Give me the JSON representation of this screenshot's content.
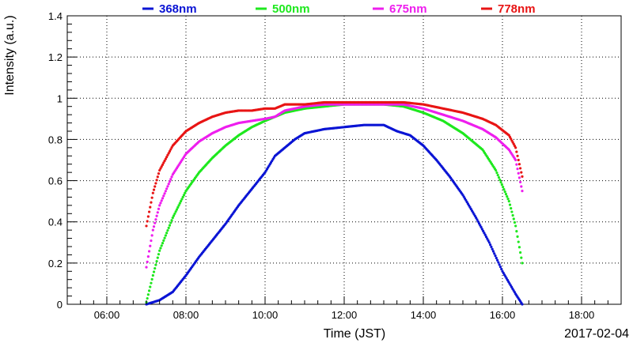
{
  "chart_data": {
    "type": "scatter",
    "title": "",
    "xlabel": "Time (JST)",
    "ylabel": "Intensity (a.u.)",
    "date_label": "2017-02-04",
    "xlim": [
      "05:00",
      "19:00"
    ],
    "ylim": [
      0,
      1.4
    ],
    "x_tick_labels": [
      "06:00",
      "08:00",
      "10:00",
      "12:00",
      "14:00",
      "16:00",
      "18:00"
    ],
    "y_tick_labels": [
      "0",
      "0.2",
      "0.4",
      "0.6",
      "0.8",
      "1",
      "1.2",
      "1.4"
    ],
    "grid": true,
    "legend_position": "top",
    "series": [
      {
        "name": "368nm",
        "color": "#0a14d4",
        "x": [
          "07:00",
          "07:20",
          "07:40",
          "08:00",
          "08:20",
          "08:40",
          "09:00",
          "09:20",
          "09:40",
          "10:00",
          "10:15",
          "10:30",
          "10:45",
          "11:00",
          "11:30",
          "12:00",
          "12:30",
          "13:00",
          "13:20",
          "13:40",
          "14:00",
          "14:20",
          "14:40",
          "15:00",
          "15:20",
          "15:40",
          "16:00",
          "16:20",
          "16:30"
        ],
        "y": [
          0.0,
          0.02,
          0.06,
          0.14,
          0.23,
          0.31,
          0.39,
          0.48,
          0.56,
          0.64,
          0.72,
          0.76,
          0.8,
          0.83,
          0.85,
          0.86,
          0.87,
          0.87,
          0.84,
          0.82,
          0.77,
          0.7,
          0.62,
          0.53,
          0.42,
          0.3,
          0.16,
          0.05,
          0.0
        ]
      },
      {
        "name": "500nm",
        "color": "#1ee81e",
        "x": [
          "07:00",
          "07:10",
          "07:20",
          "07:40",
          "08:00",
          "08:20",
          "08:40",
          "09:00",
          "09:20",
          "09:40",
          "10:00",
          "10:15",
          "10:30",
          "11:00",
          "11:30",
          "12:00",
          "12:30",
          "13:00",
          "13:30",
          "14:00",
          "14:30",
          "15:00",
          "15:30",
          "15:50",
          "16:10",
          "16:20",
          "16:30"
        ],
        "y": [
          0.01,
          0.14,
          0.26,
          0.42,
          0.55,
          0.64,
          0.71,
          0.77,
          0.82,
          0.86,
          0.89,
          0.91,
          0.93,
          0.95,
          0.96,
          0.97,
          0.97,
          0.97,
          0.96,
          0.93,
          0.89,
          0.83,
          0.75,
          0.65,
          0.5,
          0.38,
          0.2
        ]
      },
      {
        "name": "675nm",
        "color": "#ee1eee",
        "x": [
          "07:00",
          "07:10",
          "07:20",
          "07:40",
          "08:00",
          "08:20",
          "08:40",
          "09:00",
          "09:20",
          "09:40",
          "10:00",
          "10:15",
          "10:30",
          "11:00",
          "11:30",
          "12:00",
          "12:30",
          "13:00",
          "13:30",
          "14:00",
          "14:30",
          "15:00",
          "15:30",
          "15:50",
          "16:10",
          "16:20",
          "16:30"
        ],
        "y": [
          0.18,
          0.36,
          0.48,
          0.63,
          0.73,
          0.79,
          0.83,
          0.86,
          0.88,
          0.89,
          0.9,
          0.91,
          0.94,
          0.96,
          0.97,
          0.97,
          0.97,
          0.97,
          0.97,
          0.95,
          0.92,
          0.89,
          0.85,
          0.81,
          0.75,
          0.7,
          0.55
        ]
      },
      {
        "name": "778nm",
        "color": "#e81414",
        "x": [
          "07:00",
          "07:10",
          "07:20",
          "07:40",
          "08:00",
          "08:20",
          "08:40",
          "09:00",
          "09:20",
          "09:40",
          "10:00",
          "10:15",
          "10:30",
          "11:00",
          "11:30",
          "12:00",
          "12:30",
          "13:00",
          "13:30",
          "14:00",
          "14:30",
          "15:00",
          "15:30",
          "15:50",
          "16:10",
          "16:20",
          "16:30"
        ],
        "y": [
          0.38,
          0.54,
          0.65,
          0.77,
          0.84,
          0.88,
          0.91,
          0.93,
          0.94,
          0.94,
          0.95,
          0.95,
          0.97,
          0.97,
          0.98,
          0.98,
          0.98,
          0.98,
          0.98,
          0.97,
          0.95,
          0.93,
          0.9,
          0.87,
          0.82,
          0.76,
          0.62
        ]
      }
    ]
  }
}
